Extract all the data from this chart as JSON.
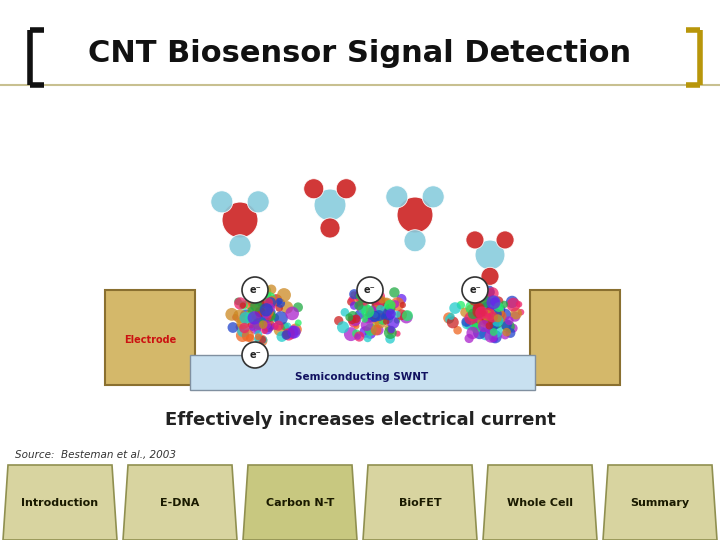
{
  "title": "CNT Biosensor Signal Detection",
  "subtitle": "Effectively increases electrical current",
  "source": "Source:  Besteman et al., 2003",
  "nav_items": [
    "Introduction",
    "E-DNA",
    "Carbon N-T",
    "BioFET",
    "Whole Cell",
    "Summary"
  ],
  "active_nav": 2,
  "title_color": "#111111",
  "title_fontsize": 22,
  "bracket_color_left": "#111111",
  "bracket_color_right": "#b8960a",
  "bg_color": "#ffffff",
  "subtitle_fontsize": 13,
  "source_fontsize": 7.5,
  "nav_bg_normal": "#d8d4a0",
  "nav_bg_active": "#c8c880",
  "nav_edge": "#909050",
  "title_sep_color": "#c8c090",
  "electrode_color": "#d4b86a",
  "electrode_edge": "#8a7030",
  "swnt_color": "#c8e0f0",
  "swnt_edge": "#8090a0",
  "electrode_label_color": "#cc1111",
  "swnt_label_color": "#111160"
}
